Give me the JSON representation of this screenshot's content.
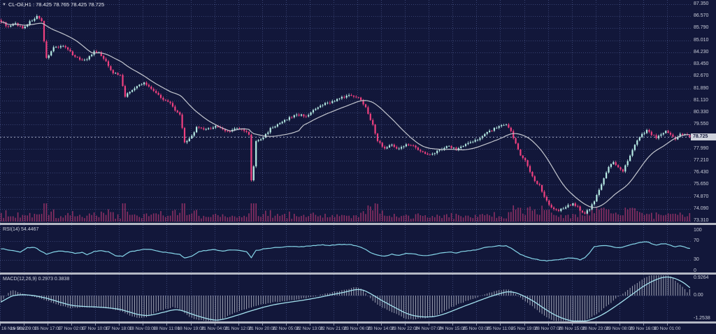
{
  "window": {
    "title": "CL-Oil,H1 : 78.425 78.765 78.425 78.725",
    "marker_icon": "down-triangle"
  },
  "colors": {
    "background": "#12173a",
    "grid": "#384272",
    "bull": "#b6ebe4",
    "bear": "#f0407f",
    "ma_line": "#c4c7cf",
    "volume": "#8a2f63",
    "rsi_line": "#86d7ea",
    "macd_signal": "#a5e2ef",
    "macd_histogram": "#c9cdd8",
    "separator": "#b4b8c4",
    "axis_text": "#c9cdd9",
    "price_line": "#9aa0b5",
    "price_tag_bg": "#ced2dc",
    "price_tag_text": "#141a3e"
  },
  "chart_data": [
    {
      "type": "candlestick",
      "name": "price",
      "symbol": "CL-Oil",
      "timeframe": "H1",
      "ohlc_display": [
        78.425,
        78.765,
        78.425,
        78.725
      ],
      "n_points": 290,
      "overlays": [
        "moving-average-line",
        "volume-bars"
      ],
      "price_axis": {
        "ticks": [
          "87.350",
          "86.570",
          "85.790",
          "85.010",
          "84.230",
          "83.450",
          "82.670",
          "81.890",
          "81.110",
          "80.330",
          "79.550",
          "78.770",
          "77.990",
          "77.210",
          "76.430",
          "75.650",
          "74.870",
          "74.090",
          "73.310"
        ],
        "step": 0.78,
        "current": 78.725,
        "current_label": "78.725"
      },
      "close_keyframes": [
        [
          0,
          86.25
        ],
        [
          3,
          85.85
        ],
        [
          6,
          86.1
        ],
        [
          9,
          85.8
        ],
        [
          12,
          86.2
        ],
        [
          15,
          86.55
        ],
        [
          17,
          86.2
        ],
        [
          18,
          84.9
        ],
        [
          19,
          83.85
        ],
        [
          22,
          84.55
        ],
        [
          26,
          84.65
        ],
        [
          30,
          84.1
        ],
        [
          33,
          83.75
        ],
        [
          36,
          83.8
        ],
        [
          39,
          84.25
        ],
        [
          41,
          84.2
        ],
        [
          44,
          83.6
        ],
        [
          47,
          82.9
        ],
        [
          50,
          82.75
        ],
        [
          52,
          81.4
        ],
        [
          55,
          81.8
        ],
        [
          58,
          82.1
        ],
        [
          60,
          82.25
        ],
        [
          63,
          81.9
        ],
        [
          65,
          81.6
        ],
        [
          68,
          81.2
        ],
        [
          71,
          80.9
        ],
        [
          74,
          80.3
        ],
        [
          75,
          80.15
        ],
        [
          77,
          78.4
        ],
        [
          79,
          78.6
        ],
        [
          82,
          79.35
        ],
        [
          86,
          79.2
        ],
        [
          90,
          79.45
        ],
        [
          95,
          79.1
        ],
        [
          99,
          79.3
        ],
        [
          102,
          79.15
        ],
        [
          104,
          78.9
        ],
        [
          105,
          75.95
        ],
        [
          106,
          76.8
        ],
        [
          107,
          78.45
        ],
        [
          110,
          78.7
        ],
        [
          113,
          79.3
        ],
        [
          117,
          79.6
        ],
        [
          120,
          79.9
        ],
        [
          124,
          80.2
        ],
        [
          128,
          80.1
        ],
        [
          132,
          80.55
        ],
        [
          136,
          80.9
        ],
        [
          140,
          81.1
        ],
        [
          144,
          81.35
        ],
        [
          147,
          81.45
        ],
        [
          150,
          81.3
        ],
        [
          153,
          80.7
        ],
        [
          156,
          79.5
        ],
        [
          158,
          78.5
        ],
        [
          161,
          78.0
        ],
        [
          164,
          78.25
        ],
        [
          167,
          77.95
        ],
        [
          170,
          78.3
        ],
        [
          173,
          78.15
        ],
        [
          176,
          77.8
        ],
        [
          179,
          77.6
        ],
        [
          182,
          77.75
        ],
        [
          185,
          78.0
        ],
        [
          188,
          78.15
        ],
        [
          191,
          77.95
        ],
        [
          194,
          78.2
        ],
        [
          197,
          78.4
        ],
        [
          200,
          78.55
        ],
        [
          203,
          79.0
        ],
        [
          206,
          79.2
        ],
        [
          209,
          79.45
        ],
        [
          212,
          79.5
        ],
        [
          214,
          79.1
        ],
        [
          216,
          78.3
        ],
        [
          218,
          77.6
        ],
        [
          220,
          77.2
        ],
        [
          222,
          76.5
        ],
        [
          224,
          75.9
        ],
        [
          226,
          75.6
        ],
        [
          228,
          74.9
        ],
        [
          230,
          74.35
        ],
        [
          232,
          74.1
        ],
        [
          234,
          73.95
        ],
        [
          236,
          74.15
        ],
        [
          238,
          74.3
        ],
        [
          240,
          74.45
        ],
        [
          242,
          74.2
        ],
        [
          243,
          73.95
        ],
        [
          245,
          73.8
        ],
        [
          247,
          74.1
        ],
        [
          249,
          74.6
        ],
        [
          251,
          75.3
        ],
        [
          253,
          76.1
        ],
        [
          255,
          76.8
        ],
        [
          257,
          77.1
        ],
        [
          259,
          76.75
        ],
        [
          261,
          76.5
        ],
        [
          263,
          77.2
        ],
        [
          265,
          77.9
        ],
        [
          267,
          78.5
        ],
        [
          269,
          78.9
        ],
        [
          271,
          79.2
        ],
        [
          273,
          78.9
        ],
        [
          275,
          78.7
        ],
        [
          277,
          78.95
        ],
        [
          279,
          79.1
        ],
        [
          281,
          78.85
        ],
        [
          283,
          78.6
        ],
        [
          285,
          78.9
        ],
        [
          287,
          78.95
        ],
        [
          289,
          78.725
        ]
      ]
    },
    {
      "type": "line",
      "name": "RSI",
      "label": "RSI(14) 54.4467",
      "period": 14,
      "value": 54.4467,
      "axis_ticks": [
        "100",
        "70",
        "30",
        "0"
      ],
      "guide_levels": [
        70,
        30
      ],
      "range": [
        0,
        100
      ],
      "keyframes": [
        [
          0,
          54
        ],
        [
          4,
          50
        ],
        [
          8,
          47
        ],
        [
          11,
          56
        ],
        [
          14,
          57
        ],
        [
          17,
          48
        ],
        [
          19,
          42
        ],
        [
          22,
          47
        ],
        [
          25,
          49
        ],
        [
          28,
          47
        ],
        [
          31,
          44
        ],
        [
          34,
          46
        ],
        [
          36,
          41
        ],
        [
          39,
          48
        ],
        [
          42,
          50
        ],
        [
          45,
          47
        ],
        [
          48,
          39
        ],
        [
          51,
          38
        ],
        [
          54,
          47
        ],
        [
          57,
          50
        ],
        [
          60,
          53
        ],
        [
          63,
          52
        ],
        [
          66,
          48
        ],
        [
          69,
          46
        ],
        [
          72,
          44
        ],
        [
          75,
          42
        ],
        [
          77,
          34
        ],
        [
          80,
          38
        ],
        [
          83,
          48
        ],
        [
          86,
          50
        ],
        [
          89,
          52
        ],
        [
          93,
          49
        ],
        [
          96,
          51
        ],
        [
          100,
          50
        ],
        [
          103,
          47
        ],
        [
          105,
          35
        ],
        [
          107,
          50
        ],
        [
          110,
          53
        ],
        [
          114,
          56
        ],
        [
          118,
          57
        ],
        [
          122,
          59
        ],
        [
          126,
          58
        ],
        [
          130,
          60
        ],
        [
          134,
          62
        ],
        [
          138,
          61
        ],
        [
          142,
          63
        ],
        [
          146,
          63
        ],
        [
          149,
          60
        ],
        [
          152,
          55
        ],
        [
          155,
          46
        ],
        [
          158,
          40
        ],
        [
          161,
          38
        ],
        [
          164,
          42
        ],
        [
          167,
          40
        ],
        [
          170,
          44
        ],
        [
          173,
          43
        ],
        [
          176,
          40
        ],
        [
          179,
          39
        ],
        [
          182,
          42
        ],
        [
          185,
          45
        ],
        [
          188,
          47
        ],
        [
          191,
          45
        ],
        [
          194,
          48
        ],
        [
          197,
          50
        ],
        [
          200,
          52
        ],
        [
          203,
          56
        ],
        [
          206,
          58
        ],
        [
          209,
          60
        ],
        [
          212,
          60
        ],
        [
          214,
          55
        ],
        [
          216,
          48
        ],
        [
          218,
          42
        ],
        [
          220,
          38
        ],
        [
          223,
          32
        ],
        [
          226,
          30
        ],
        [
          229,
          28
        ],
        [
          232,
          30
        ],
        [
          235,
          31
        ],
        [
          238,
          34
        ],
        [
          241,
          33
        ],
        [
          243,
          30
        ],
        [
          245,
          35
        ],
        [
          247,
          45
        ],
        [
          249,
          58
        ],
        [
          251,
          60
        ],
        [
          253,
          61
        ],
        [
          255,
          60
        ],
        [
          257,
          58
        ],
        [
          259,
          56
        ],
        [
          261,
          57
        ],
        [
          263,
          60
        ],
        [
          265,
          63
        ],
        [
          267,
          66
        ],
        [
          269,
          68
        ],
        [
          271,
          69
        ],
        [
          273,
          65
        ],
        [
          275,
          62
        ],
        [
          277,
          64
        ],
        [
          279,
          65
        ],
        [
          281,
          61
        ],
        [
          283,
          58
        ],
        [
          285,
          60
        ],
        [
          287,
          57
        ],
        [
          289,
          54.45
        ]
      ]
    },
    {
      "type": "macd",
      "name": "MACD",
      "label": "MACD(12,26,9) 0.2973 0.3838",
      "params": [
        12,
        26,
        9
      ],
      "main_last": 0.2973,
      "signal_last": 0.3838,
      "axis_ticks": [
        "0.9264",
        "0.00",
        "-1.2538"
      ],
      "signal_keyframes": [
        [
          0,
          -0.3
        ],
        [
          5,
          0.02
        ],
        [
          10,
          0.05
        ],
        [
          15,
          -0.02
        ],
        [
          20,
          -0.15
        ],
        [
          25,
          -0.33
        ],
        [
          30,
          -0.48
        ],
        [
          35,
          -0.52
        ],
        [
          40,
          -0.54
        ],
        [
          45,
          -0.58
        ],
        [
          50,
          -0.65
        ],
        [
          55,
          -0.82
        ],
        [
          58,
          -0.92
        ],
        [
          62,
          -0.96
        ],
        [
          66,
          -0.85
        ],
        [
          70,
          -0.74
        ],
        [
          73,
          -0.65
        ],
        [
          76,
          -0.7
        ],
        [
          80,
          -0.88
        ],
        [
          84,
          -1.02
        ],
        [
          88,
          -1.14
        ],
        [
          91,
          -1.18
        ],
        [
          95,
          -1.08
        ],
        [
          100,
          -0.9
        ],
        [
          105,
          -0.72
        ],
        [
          110,
          -0.55
        ],
        [
          115,
          -0.42
        ],
        [
          120,
          -0.33
        ],
        [
          125,
          -0.25
        ],
        [
          130,
          -0.16
        ],
        [
          135,
          -0.05
        ],
        [
          140,
          0.07
        ],
        [
          145,
          0.18
        ],
        [
          149,
          0.3
        ],
        [
          152,
          0.28
        ],
        [
          155,
          0.1
        ],
        [
          160,
          -0.25
        ],
        [
          165,
          -0.55
        ],
        [
          170,
          -0.85
        ],
        [
          174,
          -0.98
        ],
        [
          178,
          -1.02
        ],
        [
          182,
          -1.0
        ],
        [
          186,
          -0.88
        ],
        [
          190,
          -0.7
        ],
        [
          194,
          -0.52
        ],
        [
          198,
          -0.35
        ],
        [
          202,
          -0.18
        ],
        [
          206,
          -0.02
        ],
        [
          210,
          0.12
        ],
        [
          213,
          0.2
        ],
        [
          216,
          0.15
        ],
        [
          220,
          -0.05
        ],
        [
          224,
          -0.3
        ],
        [
          228,
          -0.62
        ],
        [
          232,
          -0.9
        ],
        [
          236,
          -1.1
        ],
        [
          240,
          -1.22
        ],
        [
          243,
          -1.25
        ],
        [
          246,
          -1.2
        ],
        [
          250,
          -1.05
        ],
        [
          254,
          -0.8
        ],
        [
          258,
          -0.5
        ],
        [
          262,
          -0.18
        ],
        [
          266,
          0.15
        ],
        [
          270,
          0.48
        ],
        [
          274,
          0.72
        ],
        [
          277,
          0.85
        ],
        [
          280,
          0.9
        ],
        [
          283,
          0.82
        ],
        [
          286,
          0.65
        ],
        [
          288,
          0.5
        ],
        [
          289,
          0.3838
        ]
      ]
    }
  ],
  "time_axis": {
    "labels": [
      "16 Nov 2022",
      "16 Nov 09:00",
      "16 Nov 17:00",
      "17 Nov 02:00",
      "17 Nov 10:00",
      "17 Nov 18:00",
      "18 Nov 03:00",
      "18 Nov 11:00",
      "18 Nov 19:00",
      "21 Nov 04:00",
      "21 Nov 12:00",
      "21 Nov 20:00",
      "22 Nov 05:00",
      "22 Nov 13:00",
      "22 Nov 21:00",
      "23 Nov 06:00",
      "23 Nov 14:00",
      "23 Nov 22:00",
      "24 Nov 07:00",
      "24 Nov 15:00",
      "25 Nov 03:00",
      "25 Nov 11:00",
      "25 Nov 19:00",
      "28 Nov 07:00",
      "28 Nov 15:00",
      "28 Nov 23:00",
      "29 Nov 08:00",
      "29 Nov 16:00",
      "30 Nov 01:00"
    ]
  }
}
